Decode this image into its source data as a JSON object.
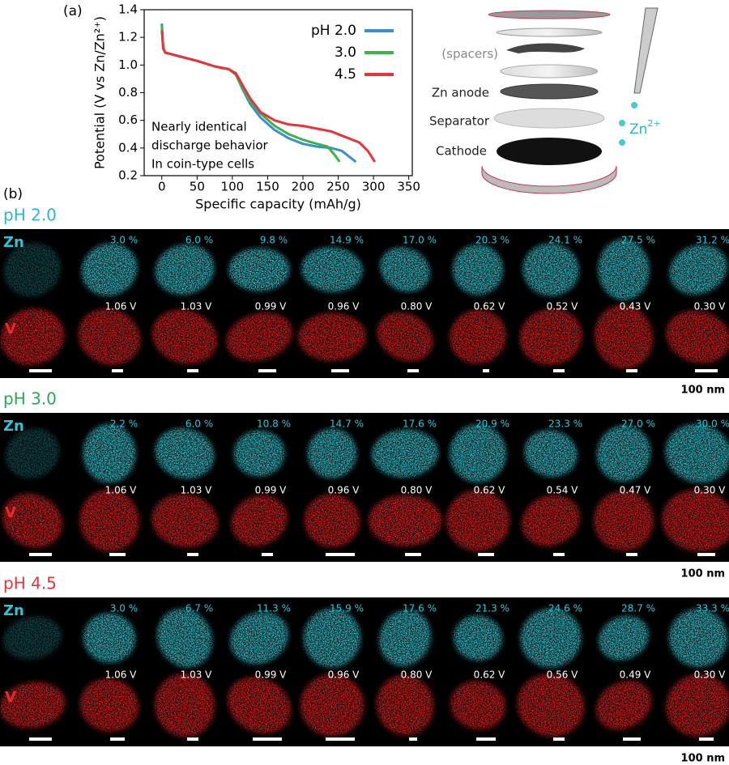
{
  "panel_a_label": "(a)",
  "chart_data": {
    "type": "line",
    "xlabel": "Specific capacity (mAh/g)",
    "ylabel": "Potential (V vs Zn/Zn²⁺)",
    "xlim": [
      -25,
      355
    ],
    "xticks": [
      0,
      50,
      100,
      150,
      200,
      250,
      300,
      350
    ],
    "ylim": [
      0.2,
      1.4
    ],
    "yticks": [
      0.2,
      0.4,
      0.6,
      0.8,
      {
        "value": 1,
        "label": "1.0"
      },
      1.2,
      1.4
    ],
    "annotation": [
      "Nearly identical",
      "discharge behavior",
      "In coin-type cells"
    ],
    "series": [
      {
        "name": "pH 2.0",
        "color": "#3a8fd0",
        "x": [
          0,
          2,
          5,
          20,
          50,
          75,
          95,
          105,
          115,
          125,
          140,
          160,
          180,
          200,
          220,
          240,
          255,
          265,
          275
        ],
        "values": [
          1.3,
          1.12,
          1.09,
          1.07,
          1.03,
          0.99,
          0.97,
          0.93,
          0.82,
          0.72,
          0.62,
          0.53,
          0.47,
          0.43,
          0.41,
          0.4,
          0.38,
          0.34,
          0.3
        ]
      },
      {
        "name": "3.0",
        "color": "#3cb44a",
        "x": [
          0,
          2,
          5,
          20,
          50,
          75,
          95,
          105,
          115,
          125,
          140,
          160,
          180,
          200,
          220,
          235,
          245,
          252
        ],
        "values": [
          1.28,
          1.12,
          1.09,
          1.07,
          1.03,
          0.99,
          0.97,
          0.93,
          0.83,
          0.74,
          0.65,
          0.56,
          0.5,
          0.46,
          0.43,
          0.41,
          0.35,
          0.3
        ]
      },
      {
        "name": "4.5",
        "color": "#e8333a",
        "x": [
          0,
          2,
          5,
          20,
          50,
          75,
          95,
          105,
          115,
          125,
          140,
          160,
          180,
          200,
          220,
          240,
          260,
          280,
          292,
          302
        ],
        "values": [
          1.25,
          1.12,
          1.09,
          1.07,
          1.03,
          0.99,
          0.97,
          0.94,
          0.85,
          0.76,
          0.66,
          0.6,
          0.57,
          0.56,
          0.54,
          0.52,
          0.48,
          0.44,
          0.38,
          0.3
        ]
      }
    ]
  },
  "cell_diagram": {
    "labels": [
      "(spacers)",
      "Zn anode",
      "Separator",
      "Cathode"
    ],
    "ion": "Zn",
    "ion_charge": "2+"
  },
  "panel_b_label": "(b)",
  "groups": [
    {
      "title": "pH 2.0",
      "color": "#2bb5d1",
      "zn_label": "Zn",
      "v_label": "V",
      "zn_percent": [
        "3.0 %",
        "6.0 %",
        "9.8 %",
        "14.9 %",
        "17.0 %",
        "20.3 %",
        "24.1 %",
        "27.5 %",
        "31.2 %"
      ],
      "voltages": [
        "1.06 V",
        "1.03 V",
        "0.99 V",
        "0.96 V",
        "0.80 V",
        "0.62 V",
        "0.52 V",
        "0.43 V",
        "0.30 V"
      ],
      "scale": "100 nm"
    },
    {
      "title": "pH 3.0",
      "color": "#2aa858",
      "zn_label": "Zn",
      "v_label": "V",
      "zn_percent": [
        "2.2 %",
        "6.0 %",
        "10.8 %",
        "14.7 %",
        "17.6 %",
        "20.9 %",
        "23.3 %",
        "27.0 %",
        "30.0 %"
      ],
      "voltages": [
        "1.06 V",
        "1.03 V",
        "0.99 V",
        "0.96 V",
        "0.80 V",
        "0.62 V",
        "0.54 V",
        "0.47 V",
        "0.30 V"
      ],
      "scale": "100 nm"
    },
    {
      "title": "pH 4.5",
      "color": "#e8333a",
      "zn_label": "Zn",
      "v_label": "V",
      "zn_percent": [
        "3.0 %",
        "6.7 %",
        "11.3 %",
        "15.9 %",
        "17.6 %",
        "21.3 %",
        "24.6 %",
        "28.7 %",
        "33.3 %"
      ],
      "voltages": [
        "1.06 V",
        "1.03 V",
        "0.99 V",
        "0.96 V",
        "0.80 V",
        "0.62 V",
        "0.56 V",
        "0.49 V",
        "0.30 V"
      ],
      "scale": "100 nm"
    }
  ]
}
